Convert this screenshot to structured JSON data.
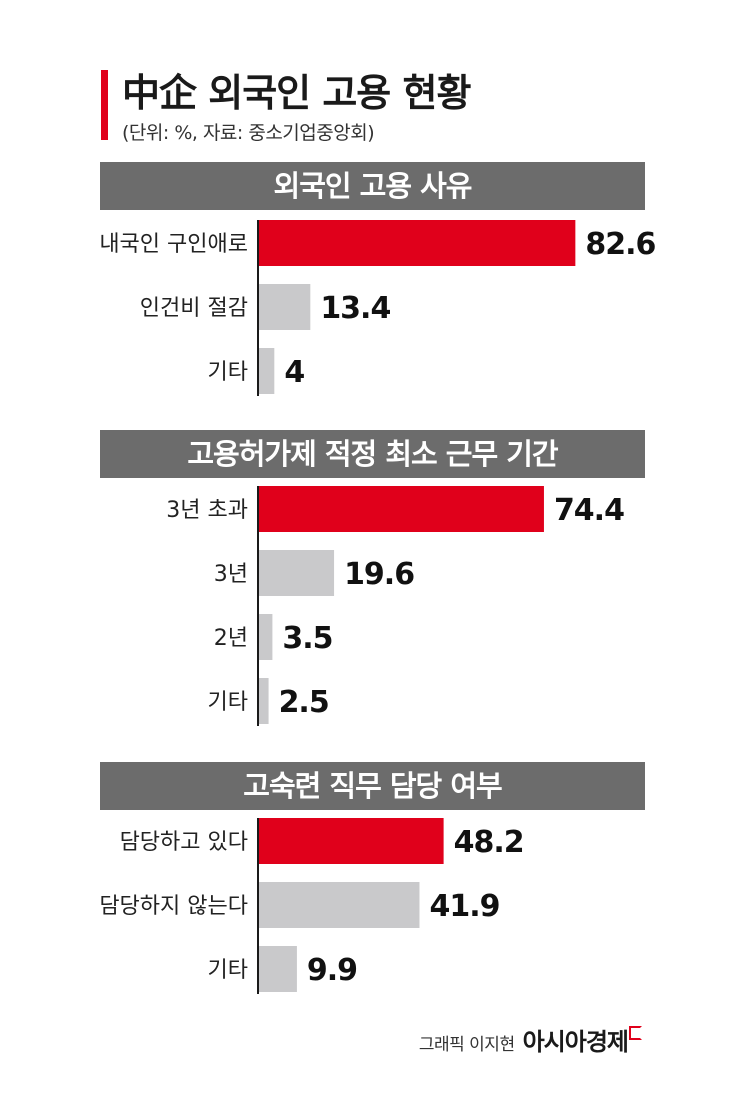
{
  "title": "中企 외국인 고용 현황",
  "subtitle": "(단위: %, 자료: 중소기업중앙회)",
  "colors": {
    "accent": "#e0001b",
    "neutral": "#c9c9cb",
    "header_bg": "#6c6c6c",
    "axis": "#1a1a1a"
  },
  "credit": {
    "text": "그래픽 이지현",
    "brand": "아시아경제"
  },
  "chart_data": [
    {
      "type": "bar",
      "orientation": "horizontal",
      "title": "외국인 고용 사유",
      "categories": [
        "내국인 구인애로",
        "인건비 절감",
        "기타"
      ],
      "values": [
        82.6,
        13.4,
        4
      ],
      "value_labels": [
        "82.6",
        "13.4",
        "4"
      ],
      "highlight": [
        true,
        false,
        false
      ]
    },
    {
      "type": "bar",
      "orientation": "horizontal",
      "title": "고용허가제 적정 최소 근무 기간",
      "categories": [
        "3년 초과",
        "3년",
        "2년",
        "기타"
      ],
      "values": [
        74.4,
        19.6,
        3.5,
        2.5
      ],
      "value_labels": [
        "74.4",
        "19.6",
        "3.5",
        "2.5"
      ],
      "highlight": [
        true,
        false,
        false,
        false
      ]
    },
    {
      "type": "bar",
      "orientation": "horizontal",
      "title": "고숙련 직무 담당 여부",
      "categories": [
        "담당하고 있다",
        "담당하지 않는다",
        "기타"
      ],
      "values": [
        48.2,
        41.9,
        9.9
      ],
      "value_labels": [
        "48.2",
        "41.9",
        "9.9"
      ],
      "highlight": [
        true,
        false,
        false
      ]
    }
  ]
}
